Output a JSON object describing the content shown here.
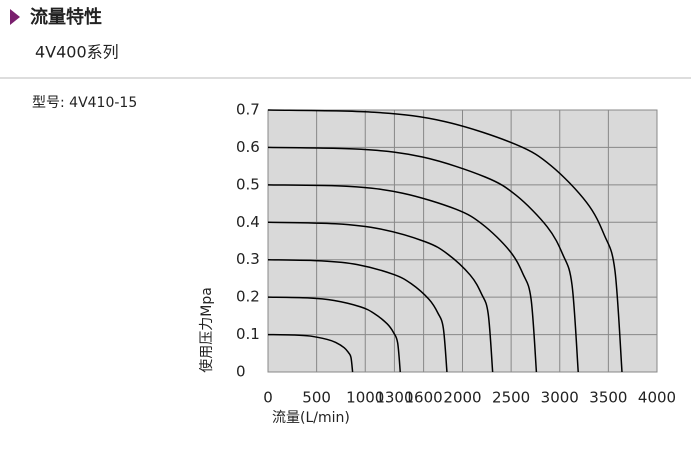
{
  "header": {
    "title": "流量特性",
    "subtitle": "4V400系列"
  },
  "model": "型号:  4V410-15",
  "chart_data": {
    "type": "line",
    "xlabel": "流量(L/min)",
    "ylabel": "使用压力Mpa",
    "xlim": [
      0,
      4000
    ],
    "ylim": [
      0,
      0.7
    ],
    "xticks": [
      0,
      500,
      1000,
      1300,
      1600,
      2000,
      2500,
      3000,
      3500,
      4000
    ],
    "yticks": [
      0,
      0.1,
      0.2,
      0.3,
      0.4,
      0.5,
      0.6,
      0.7
    ],
    "grid": true,
    "background": "#d9d9d9",
    "series": [
      {
        "color": "#000000",
        "x": [
          0,
          261,
          435,
          609,
          696,
          783,
          827,
          853,
          870
        ],
        "values": [
          0.1,
          0.099,
          0.096,
          0.087,
          0.079,
          0.065,
          0.052,
          0.039,
          0
        ]
      },
      {
        "color": "#000000",
        "x": [
          0,
          408,
          680,
          952,
          1088,
          1224,
          1292,
          1333,
          1360
        ],
        "values": [
          0.2,
          0.198,
          0.191,
          0.174,
          0.157,
          0.129,
          0.105,
          0.078,
          0
        ]
      },
      {
        "color": "#000000",
        "x": [
          0,
          552,
          920,
          1288,
          1472,
          1656,
          1748,
          1803,
          1840
        ],
        "values": [
          0.3,
          0.297,
          0.287,
          0.261,
          0.236,
          0.194,
          0.157,
          0.117,
          0
        ]
      },
      {
        "color": "#000000",
        "x": [
          0,
          693,
          1155,
          1617,
          1848,
          2079,
          2195,
          2264,
          2310
        ],
        "values": [
          0.4,
          0.396,
          0.382,
          0.348,
          0.315,
          0.259,
          0.209,
          0.156,
          0
        ]
      },
      {
        "color": "#000000",
        "x": [
          0,
          828,
          1380,
          1932,
          2208,
          2484,
          2622,
          2705,
          2760
        ],
        "values": [
          0.5,
          0.496,
          0.478,
          0.435,
          0.394,
          0.324,
          0.262,
          0.195,
          0
        ]
      },
      {
        "color": "#000000",
        "x": [
          0,
          957,
          1595,
          2233,
          2552,
          2871,
          3031,
          3126,
          3190
        ],
        "values": [
          0.6,
          0.595,
          0.574,
          0.521,
          0.472,
          0.388,
          0.314,
          0.233,
          0
        ]
      },
      {
        "color": "#000000",
        "x": [
          0,
          1092,
          1820,
          2548,
          2912,
          3276,
          3458,
          3567,
          3640
        ],
        "values": [
          0.7,
          0.694,
          0.669,
          0.608,
          0.551,
          0.453,
          0.366,
          0.272,
          0
        ]
      }
    ]
  }
}
